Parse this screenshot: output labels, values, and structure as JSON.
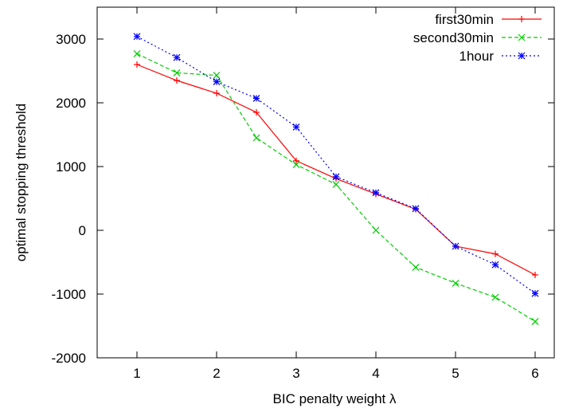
{
  "chart_data": {
    "type": "line",
    "xlabel": "BIC penalty weight λ",
    "ylabel": "optimal stopping threshold",
    "xlim": [
      0.5,
      6.5
    ],
    "ylim": [
      -2000,
      3500
    ],
    "xticks": [
      1,
      2,
      3,
      4,
      5,
      6
    ],
    "yticks": [
      -2000,
      -1000,
      0,
      1000,
      2000,
      3000
    ],
    "xtick_labels": [
      "1",
      "2",
      "3",
      "4",
      "5",
      "6"
    ],
    "ytick_labels": [
      "-2000",
      "-1000",
      "0",
      "1000",
      "2000",
      "3000"
    ],
    "grid": false,
    "legend_position": "top-right",
    "x": [
      1,
      1.5,
      2,
      2.5,
      3,
      3.5,
      4,
      4.5,
      5,
      5.5,
      6
    ],
    "series": [
      {
        "name": "first30min",
        "color": "#ff0000",
        "dash": "solid",
        "marker": "plus",
        "values": [
          2600,
          2350,
          2150,
          1850,
          1090,
          810,
          570,
          330,
          -250,
          -370,
          -700
        ]
      },
      {
        "name": "second30min",
        "color": "#00cc00",
        "dash": "dashed",
        "marker": "cross",
        "values": [
          2770,
          2470,
          2430,
          1450,
          1030,
          720,
          0,
          -580,
          -830,
          -1050,
          -1430
        ]
      },
      {
        "name": "1hour",
        "color": "#0000ff",
        "dash": "dotted",
        "marker": "star",
        "values": [
          3040,
          2710,
          2330,
          2070,
          1620,
          840,
          590,
          340,
          -250,
          -540,
          -990
        ]
      }
    ]
  }
}
